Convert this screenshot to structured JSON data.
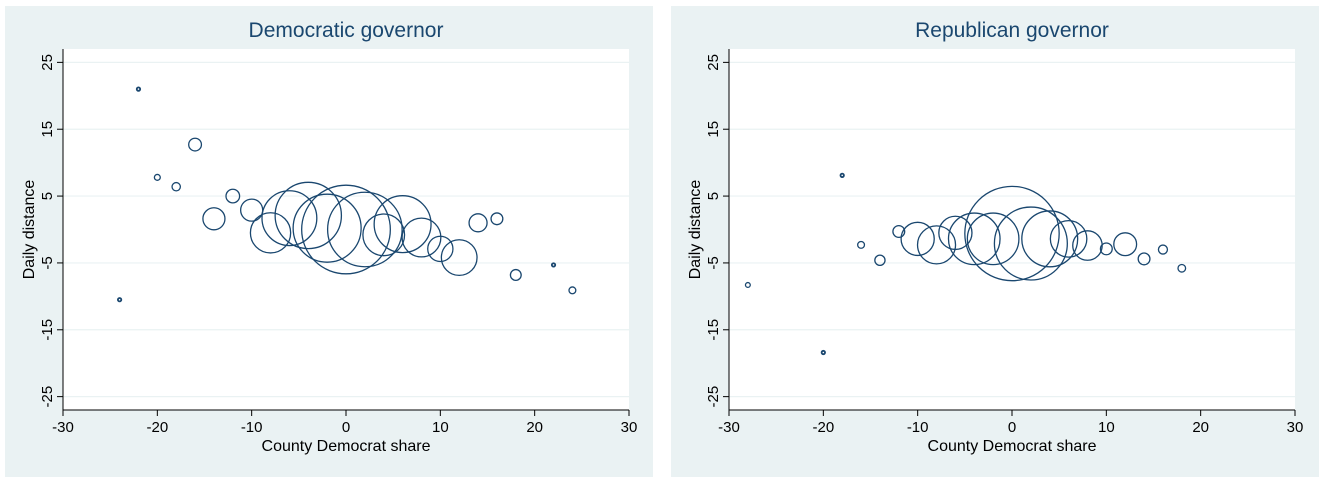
{
  "chart_data": [
    {
      "type": "scatter",
      "title": "Democratic governor",
      "xlabel": "County Democrat share",
      "ylabel": "Daily distance",
      "xlim": [
        -30,
        30
      ],
      "ylim": [
        -27,
        27
      ],
      "xticks": [
        -30,
        -20,
        -10,
        0,
        10,
        20,
        30
      ],
      "yticks": [
        25,
        15,
        5,
        -5,
        -15,
        -25
      ],
      "grid": true,
      "legend": "none",
      "marker_color": "#1a476f",
      "points": [
        {
          "x": -24,
          "y": -10.5,
          "weight": 1
        },
        {
          "x": -22,
          "y": 21,
          "weight": 1
        },
        {
          "x": -20,
          "y": 7.8,
          "weight": 3
        },
        {
          "x": -18,
          "y": 6.4,
          "weight": 6
        },
        {
          "x": -16,
          "y": 12.7,
          "weight": 14
        },
        {
          "x": -14,
          "y": 1.6,
          "weight": 42
        },
        {
          "x": -12,
          "y": 5,
          "weight": 16
        },
        {
          "x": -10,
          "y": 2.9,
          "weight": 42
        },
        {
          "x": -8,
          "y": -0.5,
          "weight": 140
        },
        {
          "x": -6,
          "y": 1.7,
          "weight": 260
        },
        {
          "x": -4,
          "y": 2.1,
          "weight": 380
        },
        {
          "x": -2,
          "y": 0.2,
          "weight": 400
        },
        {
          "x": 0,
          "y": 0,
          "weight": 680
        },
        {
          "x": 2,
          "y": 0,
          "weight": 480
        },
        {
          "x": 4,
          "y": -0.8,
          "weight": 150
        },
        {
          "x": 6,
          "y": 0.8,
          "weight": 280
        },
        {
          "x": 8,
          "y": -1.2,
          "weight": 130
        },
        {
          "x": 10,
          "y": -2.9,
          "weight": 55
        },
        {
          "x": 12,
          "y": -4.2,
          "weight": 110
        },
        {
          "x": 14,
          "y": 1,
          "weight": 28
        },
        {
          "x": 16,
          "y": 1.6,
          "weight": 12
        },
        {
          "x": 18,
          "y": -6.8,
          "weight": 10
        },
        {
          "x": 22,
          "y": -5.3,
          "weight": 1
        },
        {
          "x": 24,
          "y": -9.1,
          "weight": 4
        }
      ]
    },
    {
      "type": "scatter",
      "title": "Republican governor",
      "xlabel": "County Democrat share",
      "ylabel": "Daily distance",
      "xlim": [
        -30,
        30
      ],
      "ylim": [
        -27,
        27
      ],
      "xticks": [
        -30,
        -20,
        -10,
        0,
        10,
        20,
        30
      ],
      "yticks": [
        25,
        15,
        5,
        -5,
        -15,
        -25
      ],
      "grid": true,
      "legend": "none",
      "marker_color": "#1a476f",
      "points": [
        {
          "x": -28,
          "y": -8.3,
          "weight": 2
        },
        {
          "x": -20,
          "y": -18.4,
          "weight": 1
        },
        {
          "x": -18,
          "y": 8.1,
          "weight": 1
        },
        {
          "x": -16,
          "y": -2.3,
          "weight": 4
        },
        {
          "x": -14,
          "y": -4.6,
          "weight": 9
        },
        {
          "x": -12,
          "y": -0.3,
          "weight": 12
        },
        {
          "x": -10,
          "y": -1.4,
          "weight": 95
        },
        {
          "x": -8,
          "y": -2.3,
          "weight": 125
        },
        {
          "x": -6,
          "y": -0.5,
          "weight": 95
        },
        {
          "x": -4,
          "y": -1.4,
          "weight": 230
        },
        {
          "x": -2,
          "y": -1.4,
          "weight": 230
        },
        {
          "x": 0,
          "y": -0.6,
          "weight": 770
        },
        {
          "x": 2,
          "y": -2.1,
          "weight": 460
        },
        {
          "x": 4,
          "y": -1.4,
          "weight": 270
        },
        {
          "x": 6,
          "y": -1.4,
          "weight": 115
        },
        {
          "x": 8,
          "y": -2.4,
          "weight": 75
        },
        {
          "x": 10,
          "y": -2.9,
          "weight": 12
        },
        {
          "x": 12,
          "y": -2.2,
          "weight": 45
        },
        {
          "x": 14,
          "y": -4.4,
          "weight": 12
        },
        {
          "x": 16,
          "y": -3,
          "weight": 7
        },
        {
          "x": 18,
          "y": -5.8,
          "weight": 5
        }
      ]
    }
  ]
}
